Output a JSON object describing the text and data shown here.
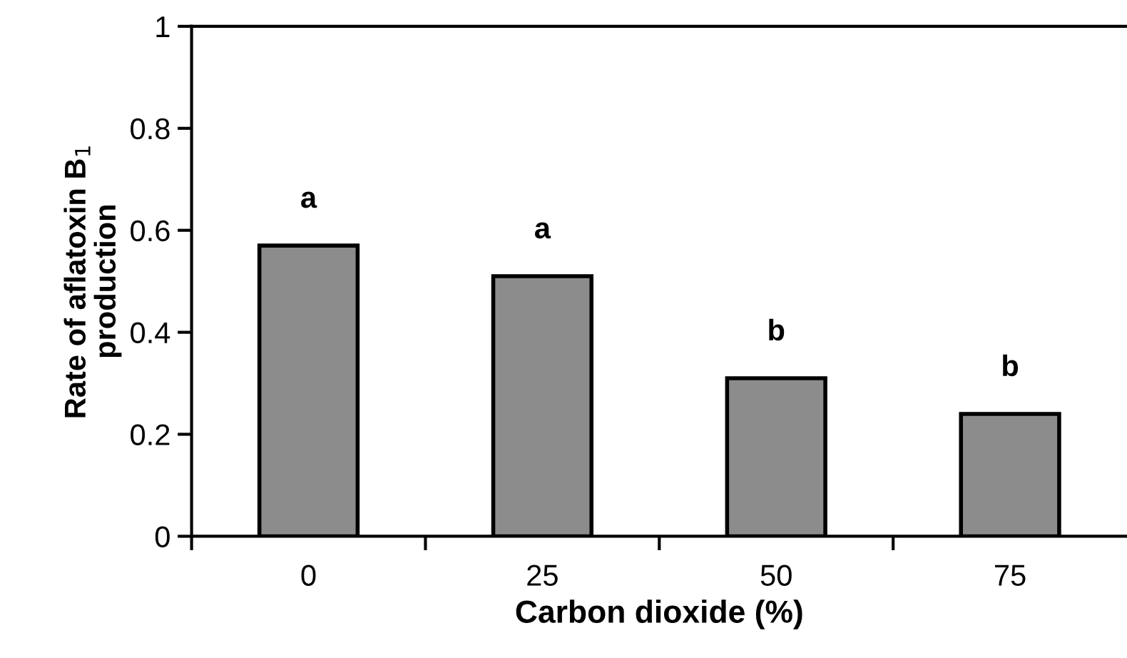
{
  "chart_data": {
    "type": "bar",
    "xlabel": "Carbon dioxide (%)",
    "ylabel": "Rate of aflatoxin B$_{1}$\nproduction",
    "categories": [
      "0",
      "25",
      "50",
      "75"
    ],
    "values": [
      0.57,
      0.51,
      0.31,
      0.24
    ],
    "color": "#8c8c8c",
    "ylim": [
      0,
      1
    ],
    "yticks": [
      0,
      0.2,
      0.4,
      0.6,
      0.8,
      1
    ],
    "annotations": [
      {
        "text": "a",
        "x": "0",
        "y": 0.57
      },
      {
        "text": "a",
        "x": "25",
        "y": 0.51
      },
      {
        "text": "b",
        "x": "50",
        "y": 0.31
      },
      {
        "text": "b",
        "x": "75",
        "y": 0.24
      }
    ],
    "grid": false,
    "legend": false
  }
}
